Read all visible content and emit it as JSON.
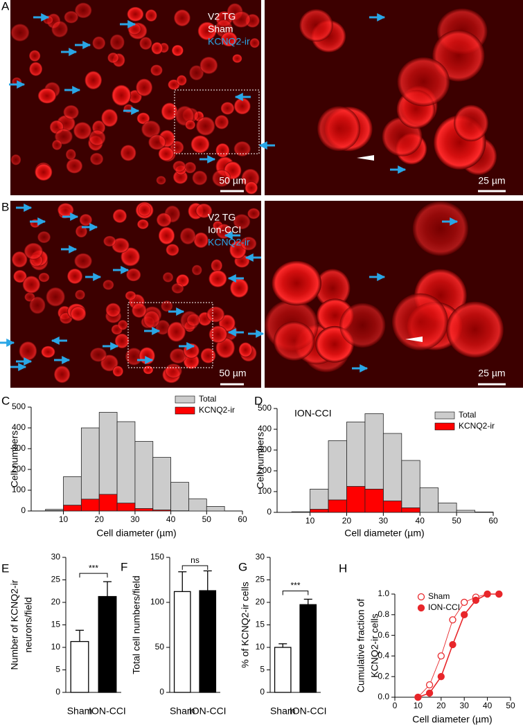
{
  "images": [
    {
      "label": "A",
      "lines": [
        "V2 TG",
        "Sham",
        "KCNQ2-ir"
      ],
      "scalebars": [
        "50 µm",
        "25 µm"
      ]
    },
    {
      "label": "B",
      "lines": [
        "V2 TG",
        "Ion-CCI",
        "KCNQ2-ir"
      ],
      "scalebars": [
        "50 µm",
        "25 µm"
      ]
    }
  ],
  "chart_data": [
    {
      "type": "histogram",
      "label": "C",
      "xlabel": "Cell diameter (µm)",
      "ylabel": "Cell numbers",
      "bins": [
        5,
        10,
        15,
        20,
        25,
        30,
        35,
        40,
        45,
        50,
        55
      ],
      "series": [
        {
          "name": "Total",
          "color": "#cccccc",
          "values": [
            8,
            165,
            400,
            475,
            430,
            335,
            258,
            138,
            58,
            22
          ]
        },
        {
          "name": "KCNQ2-ir",
          "color": "#ff0000",
          "values": [
            2,
            28,
            57,
            80,
            38,
            12,
            5,
            1,
            0,
            0
          ]
        }
      ],
      "xlim": [
        1,
        60
      ],
      "xticks": [
        10,
        20,
        30,
        40,
        50,
        60
      ],
      "ylim": [
        0,
        500
      ],
      "yticks": [
        0,
        100,
        200,
        300,
        400,
        500
      ]
    },
    {
      "type": "histogram",
      "label": "D",
      "annotation": "ION-CCI",
      "xlabel": "Cell diameter (µm)",
      "ylabel": "Cell numbers",
      "bins": [
        5,
        10,
        15,
        20,
        25,
        30,
        35,
        40,
        45,
        50,
        55,
        60
      ],
      "series": [
        {
          "name": "Total",
          "color": "#cccccc",
          "values": [
            3,
            112,
            345,
            435,
            475,
            380,
            250,
            118,
            45,
            10,
            2
          ]
        },
        {
          "name": "KCNQ2-ir",
          "color": "#ff0000",
          "values": [
            0,
            15,
            60,
            125,
            112,
            55,
            22,
            0,
            0,
            0,
            0
          ]
        }
      ],
      "xlim": [
        1,
        60
      ],
      "xticks": [
        10,
        20,
        30,
        40,
        50,
        60
      ],
      "ylim": [
        0,
        500
      ],
      "yticks": [
        0,
        100,
        200,
        300,
        400,
        500
      ]
    },
    {
      "type": "bar",
      "label": "E",
      "ylabel": [
        "Number of KCNQ2-ir",
        "neurons/field"
      ],
      "annotation": "***",
      "categories": [
        "Sham",
        "ION-CCI"
      ],
      "values": [
        11.3,
        21.3
      ],
      "errors": [
        2.5,
        3.3
      ],
      "colors": [
        "#ffffff",
        "#000000"
      ],
      "ylim": [
        0,
        30
      ],
      "yticks": [
        0,
        5,
        10,
        15,
        20,
        25,
        30
      ]
    },
    {
      "type": "bar",
      "label": "F",
      "ylabel": [
        "Total cell numbers/field"
      ],
      "annotation": "ns",
      "categories": [
        "Sham",
        "ION-CCI"
      ],
      "values": [
        112,
        113
      ],
      "errors": [
        22,
        22
      ],
      "colors": [
        "#ffffff",
        "#000000"
      ],
      "ylim": [
        0,
        150
      ],
      "yticks": [
        0,
        50,
        100,
        150
      ]
    },
    {
      "type": "bar",
      "label": "G",
      "ylabel": [
        "% of KCNQ2-ir cells"
      ],
      "annotation": "***",
      "categories": [
        "Sham",
        "ION-CCI"
      ],
      "values": [
        10,
        19.5
      ],
      "errors": [
        0.8,
        1.2
      ],
      "colors": [
        "#ffffff",
        "#000000"
      ],
      "ylim": [
        0,
        30
      ],
      "yticks": [
        0,
        5,
        10,
        15,
        20,
        25,
        30
      ]
    },
    {
      "type": "line",
      "label": "H",
      "xlabel": "Cell diameter (µm)",
      "ylabel": [
        "Cumulative fraction of",
        "KCNQ2-ir cells"
      ],
      "x": [
        10,
        15,
        20,
        25,
        30,
        35,
        40,
        45
      ],
      "series": [
        {
          "name": "Sham",
          "color": "#e8262a",
          "filled": false,
          "values": [
            0,
            0.12,
            0.4,
            0.75,
            0.92,
            0.97,
            1,
            1
          ]
        },
        {
          "name": "ION-CCI",
          "color": "#e8262a",
          "filled": true,
          "values": [
            0,
            0.04,
            0.2,
            0.51,
            0.8,
            0.94,
            1,
            1
          ]
        }
      ],
      "xlim": [
        0,
        50
      ],
      "xticks": [
        0,
        10,
        20,
        30,
        40,
        50
      ],
      "ylim": [
        0,
        1
      ],
      "yticks": [
        {
          "value": 0,
          "label": "0.0"
        },
        {
          "value": 0.2,
          "label": "0.2"
        },
        {
          "value": 0.4,
          "label": "0.4"
        },
        {
          "value": 0.6,
          "label": "0.6"
        },
        {
          "value": 0.8,
          "label": "0.8"
        },
        {
          "value": 1,
          "label": "1.0"
        }
      ]
    }
  ]
}
